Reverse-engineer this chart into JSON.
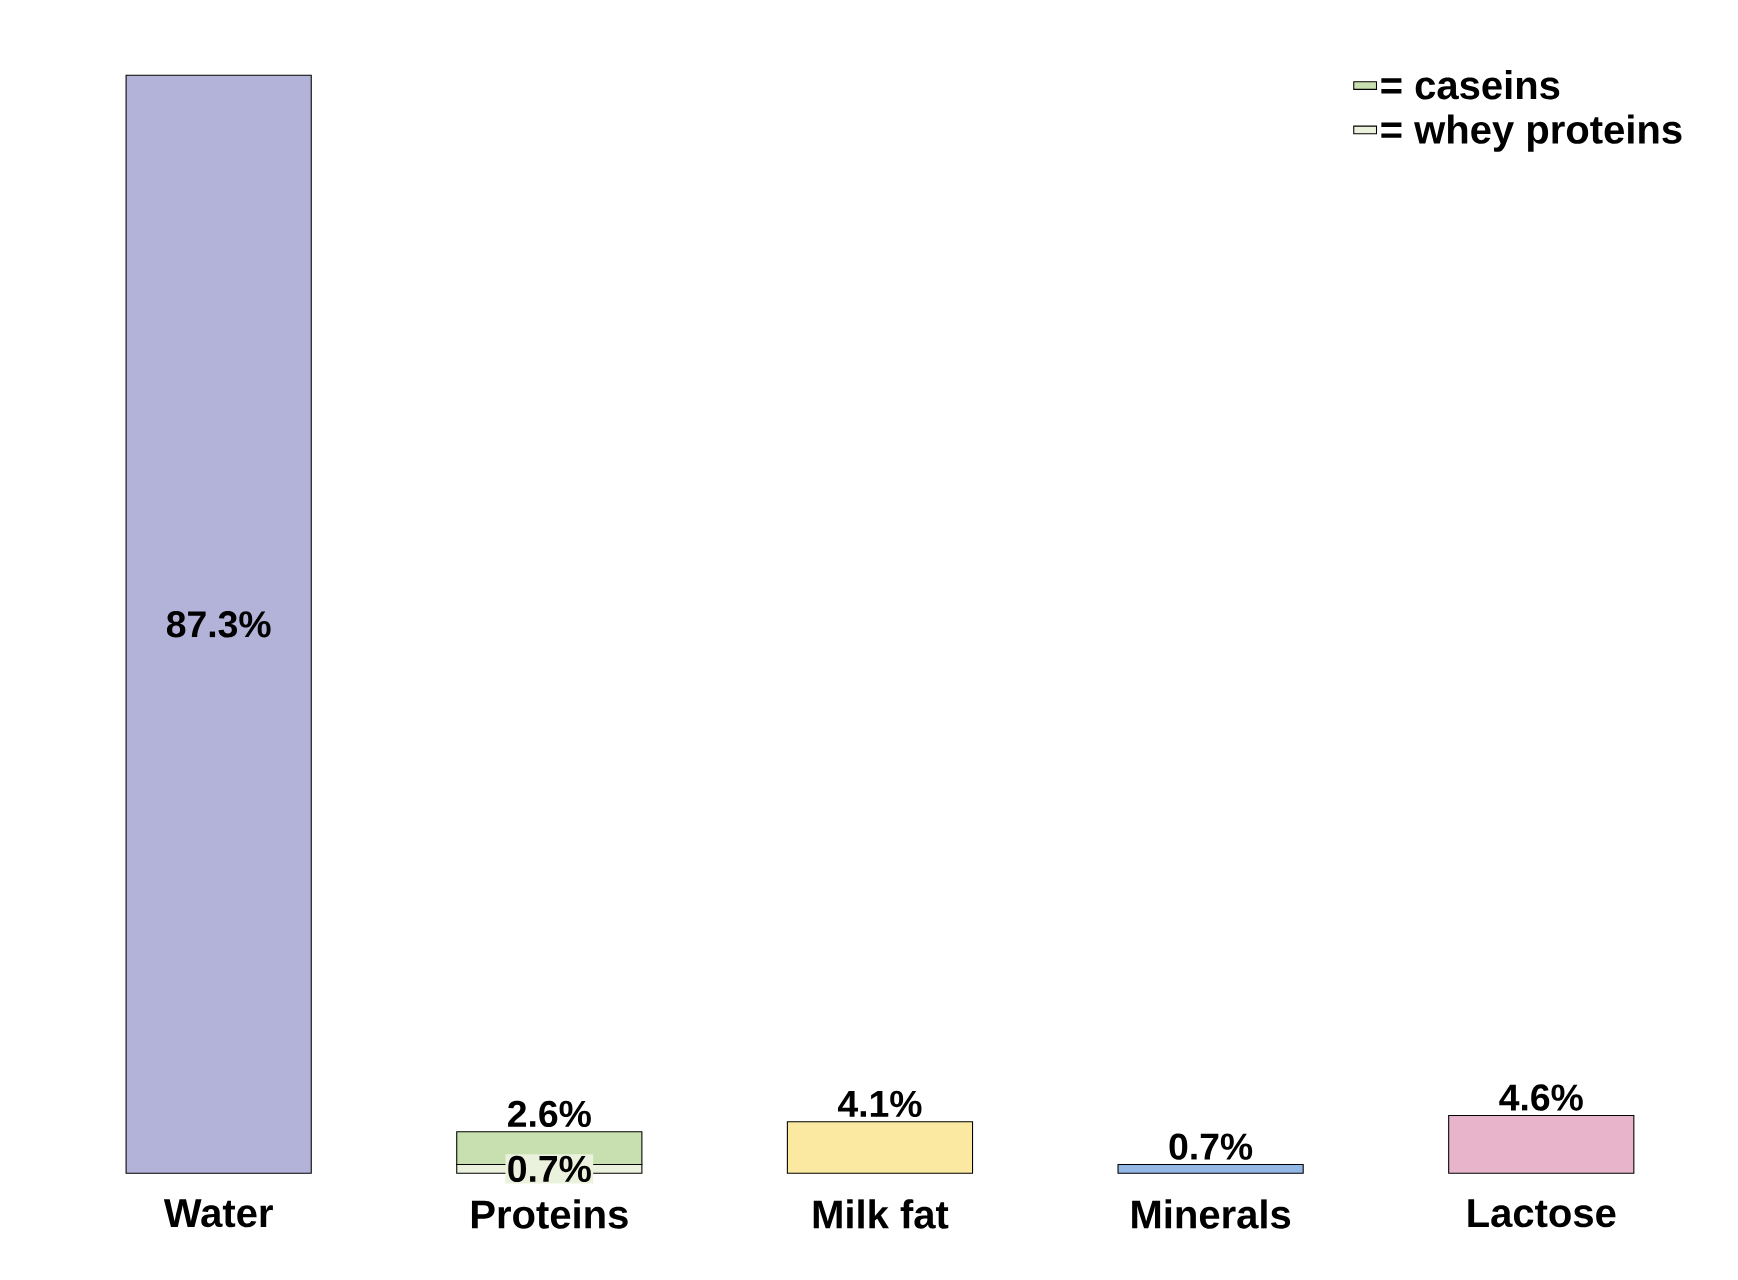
{
  "chart_data": {
    "type": "bar",
    "stacked": true,
    "legend": "top right",
    "categories": [
      "Water",
      "Proteins",
      "Milk fat",
      "Minerals",
      "Lactose"
    ],
    "series": [
      {
        "colors": [
          "#b3b3d9",
          null,
          "#fbe9a2",
          "#93b8e6",
          "#e8b4cc"
        ],
        "values": [
          87.3,
          null,
          4.1,
          0.7,
          4.6
        ],
        "value_labels": [
          "87.3%",
          null,
          "4.1%",
          "0.7%",
          "4.6%"
        ]
      },
      {
        "name": "= whey proteins",
        "color": "#eaf1dc",
        "values": [
          null,
          0.7,
          null,
          null,
          null
        ],
        "value_labels": [
          null,
          "0.7%",
          null,
          null,
          null
        ]
      },
      {
        "name": "= caseins",
        "color": "#c8dfb0",
        "values": [
          null,
          2.6,
          null,
          null,
          null
        ],
        "value_labels": [
          null,
          "2.6%",
          null,
          null,
          null
        ]
      }
    ]
  }
}
